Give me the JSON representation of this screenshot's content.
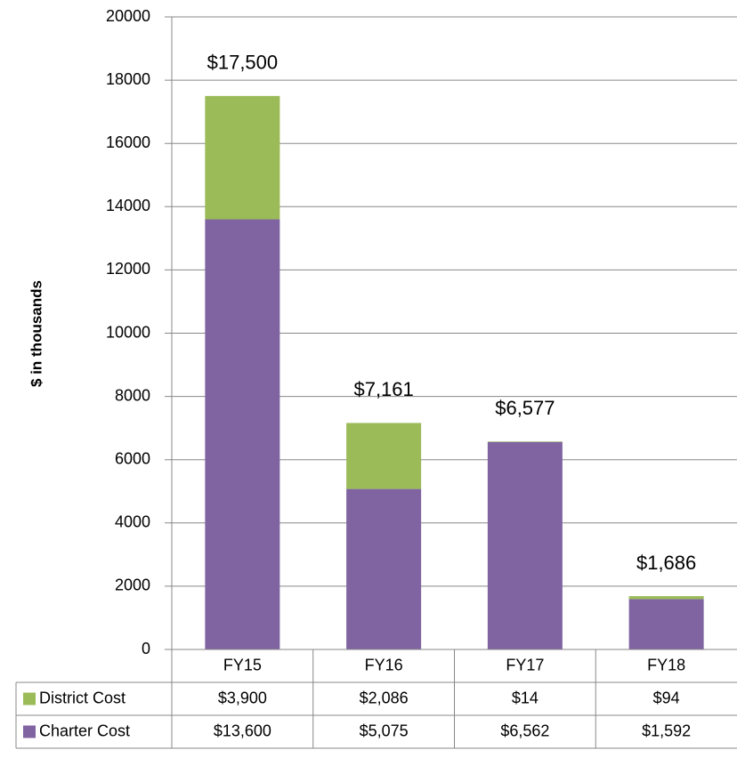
{
  "chart_data": {
    "type": "bar",
    "stacked": true,
    "y_label": "$ in thousands",
    "categories": [
      "FY15",
      "FY16",
      "FY17",
      "FY18"
    ],
    "series": [
      {
        "name": "District Cost",
        "color": "#9bbb59",
        "values": [
          3900,
          2086,
          14,
          94
        ],
        "value_labels": [
          "$3,900",
          "$2,086",
          "$14",
          "$94"
        ]
      },
      {
        "name": "Charter Cost",
        "color": "#8064a2",
        "values": [
          13600,
          5075,
          6562,
          1592
        ],
        "value_labels": [
          "$13,600",
          "$5,075",
          "$6,562",
          "$1,592"
        ]
      }
    ],
    "totals": [
      17500,
      7161,
      6577,
      1686
    ],
    "total_labels": [
      "$17,500",
      "$7,161",
      "$6,577",
      "$1,686"
    ],
    "ylim": [
      0,
      20000
    ],
    "yticks": [
      0,
      2000,
      4000,
      6000,
      8000,
      10000,
      12000,
      14000,
      16000,
      18000,
      20000
    ],
    "grid": true
  }
}
